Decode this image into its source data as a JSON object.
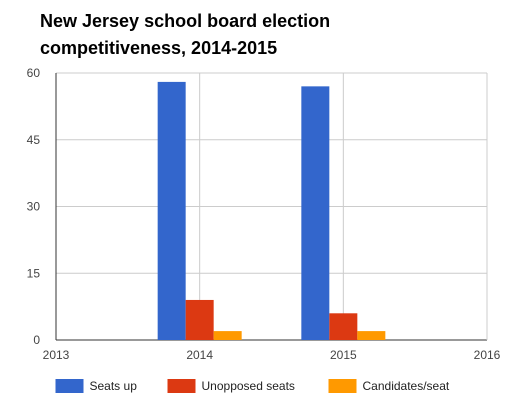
{
  "chart_data": {
    "type": "bar",
    "title_lines": [
      "New Jersey school board election",
      "competitiveness, 2014-2015"
    ],
    "x": [
      2014,
      2015
    ],
    "x_ticks": [
      "2013",
      "2014",
      "2015",
      "2016"
    ],
    "xlim": [
      2013,
      2016
    ],
    "y_ticks": [
      "0",
      "15",
      "30",
      "45",
      "60"
    ],
    "ylim": [
      0,
      60
    ],
    "grid": true,
    "legend_position": "bottom",
    "series": [
      {
        "name": "Seats up",
        "values": [
          58,
          57
        ],
        "color": "#3366cc"
      },
      {
        "name": "Unopposed seats",
        "values": [
          9,
          6
        ],
        "color": "#dc3912"
      },
      {
        "name": "Candidates/seat",
        "values": [
          2,
          2
        ],
        "color": "#ff9900"
      }
    ]
  }
}
